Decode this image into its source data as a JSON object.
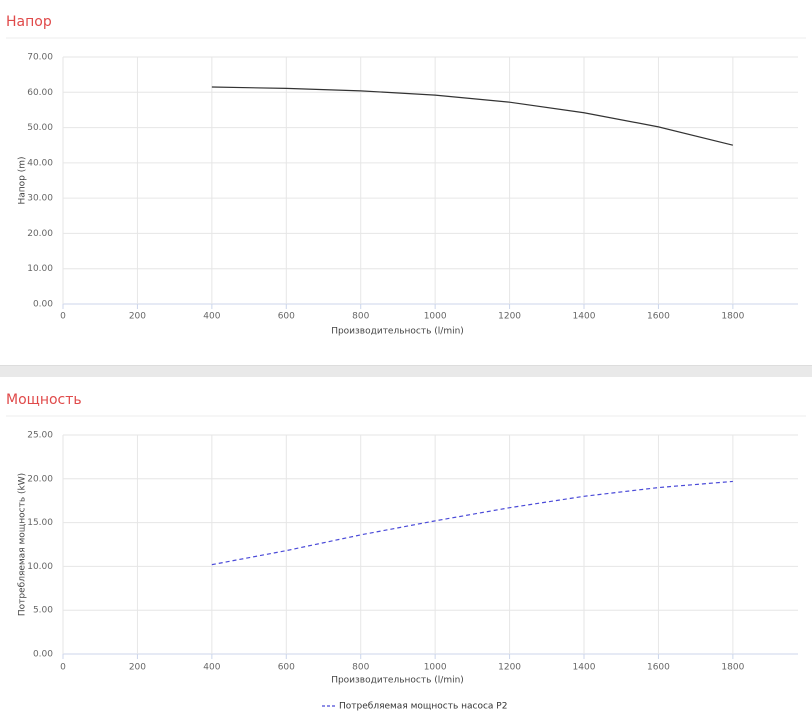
{
  "chart_data": [
    {
      "type": "line",
      "title": "Напор",
      "ylabel": "Напор (m)",
      "xlabel": "Производительность (l/min)",
      "x": [
        400,
        600,
        800,
        1000,
        1200,
        1400,
        1600,
        1800
      ],
      "values": [
        61.5,
        61.1,
        60.4,
        59.2,
        57.2,
        54.2,
        50.2,
        45.0
      ],
      "color": "#333333",
      "line_style": "solid",
      "xlim": [
        0,
        1975
      ],
      "xticks": [
        0,
        200,
        400,
        600,
        800,
        1000,
        1200,
        1400,
        1600,
        1800
      ],
      "ylim": [
        0,
        70
      ],
      "yticks": [
        {
          "value": 0,
          "label": "0.00"
        },
        {
          "value": 10,
          "label": "10.00"
        },
        {
          "value": 20,
          "label": "20.00"
        },
        {
          "value": 30,
          "label": "30.00"
        },
        {
          "value": 40,
          "label": "40.00"
        },
        {
          "value": 50,
          "label": "50.00"
        },
        {
          "value": 60,
          "label": "60.00"
        },
        {
          "value": 70,
          "label": "70.00"
        }
      ],
      "grid": true
    },
    {
      "type": "line",
      "title": "Мощность",
      "ylabel": "Потребляемая мощность (kW)",
      "xlabel": "Производительность (l/min)",
      "x": [
        400,
        600,
        800,
        1000,
        1200,
        1400,
        1600,
        1800
      ],
      "series": [
        {
          "name": "Потребляемая мощность насоса P2",
          "color": "#4a4ad8",
          "line_style": "dashed",
          "values": [
            10.2,
            11.8,
            13.6,
            15.2,
            16.7,
            18.0,
            19.0,
            19.7
          ]
        }
      ],
      "xlim": [
        0,
        1975
      ],
      "xticks": [
        0,
        200,
        400,
        600,
        800,
        1000,
        1200,
        1400,
        1600,
        1800
      ],
      "ylim": [
        0,
        25
      ],
      "yticks": [
        {
          "value": 0,
          "label": "0.00"
        },
        {
          "value": 5,
          "label": "5.00"
        },
        {
          "value": 10,
          "label": "10.00"
        },
        {
          "value": 15,
          "label": "15.00"
        },
        {
          "value": 20,
          "label": "20.00"
        },
        {
          "value": 25,
          "label": "25.00"
        }
      ],
      "grid": true,
      "legend": "bottom"
    }
  ]
}
